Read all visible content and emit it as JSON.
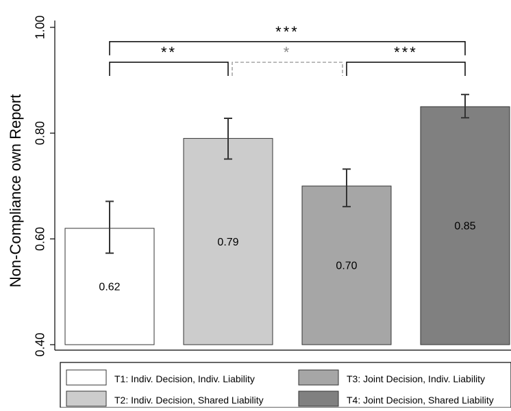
{
  "chart_data": {
    "type": "bar",
    "ylabel": "Non-Compliance own Report",
    "ylim": [
      0.4,
      1.0
    ],
    "yticks": [
      "0.40",
      "0.60",
      "0.80",
      "1.00"
    ],
    "grid": false,
    "legend_position": "bottom",
    "categories": [
      "T1: Indiv. Decision, Indiv. Liability",
      "T2: Indiv. Decision, Shared Liability",
      "T3: Joint Decision, Indiv. Liability",
      "T4: Joint Decision, Shared Liability"
    ],
    "values": [
      0.62,
      0.79,
      0.7,
      0.85
    ],
    "value_labels": [
      "0.62",
      "0.79",
      "0.70",
      "0.85"
    ],
    "error_low": [
      0.573,
      0.751,
      0.661,
      0.829
    ],
    "error_high": [
      0.671,
      0.828,
      0.732,
      0.873
    ],
    "colors": [
      "#ffffff",
      "#cccccc",
      "#a6a6a6",
      "#808080"
    ],
    "significance": [
      {
        "from": 0,
        "to": 3,
        "label": "***",
        "y": 0.973,
        "style": "solid",
        "color": "#000000"
      },
      {
        "from": 0,
        "to": 1,
        "label": "**",
        "y": 0.934,
        "style": "solid",
        "color": "#000000"
      },
      {
        "from": 1,
        "to": 2,
        "label": "*",
        "y": 0.934,
        "style": "dashed",
        "color": "#888888"
      },
      {
        "from": 2,
        "to": 3,
        "label": "***",
        "y": 0.934,
        "style": "solid",
        "color": "#000000"
      }
    ]
  }
}
